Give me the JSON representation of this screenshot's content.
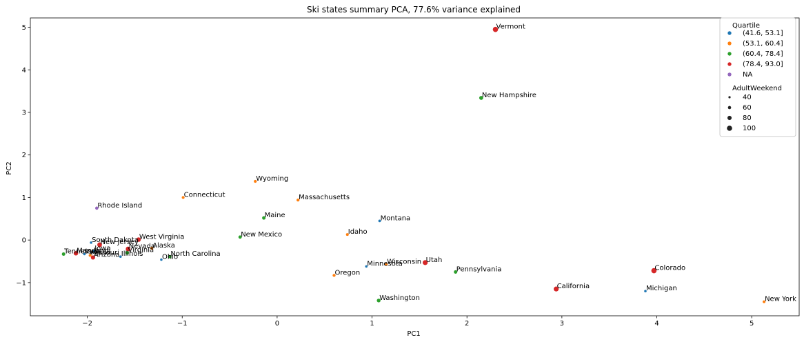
{
  "chart_data": {
    "type": "scatter",
    "title": "Ski states summary PCA, 77.6% variance explained",
    "xlabel": "PC1",
    "ylabel": "PC2",
    "xlim": [
      -2.6,
      5.5
    ],
    "ylim": [
      -1.78,
      5.22
    ],
    "xticks": [
      -2,
      -1,
      0,
      1,
      2,
      3,
      4,
      5
    ],
    "yticks": [
      -1,
      0,
      1,
      2,
      3,
      4,
      5
    ],
    "grid": false,
    "legend": {
      "placement": "top-right",
      "hue_title": "Quartile",
      "hue_entries": [
        {
          "label": "(41.6, 53.1]",
          "color": "#1f77b4"
        },
        {
          "label": "(53.1, 60.4]",
          "color": "#ff7f0e"
        },
        {
          "label": "(60.4, 78.4]",
          "color": "#2ca02c"
        },
        {
          "label": "(78.4, 93.0]",
          "color": "#d62728"
        },
        {
          "label": "NA",
          "color": "#9467bd"
        }
      ],
      "size_title": "AdultWeekend",
      "size_entries": [
        {
          "label": "40",
          "value": 40
        },
        {
          "label": "60",
          "value": 60
        },
        {
          "label": "80",
          "value": 80
        },
        {
          "label": "100",
          "value": 100
        }
      ]
    },
    "points": [
      {
        "label": "Vermont",
        "x": 2.3,
        "y": 4.95,
        "quartile": 3,
        "size": 100
      },
      {
        "label": "New Hampshire",
        "x": 2.15,
        "y": 3.34,
        "quartile": 2,
        "size": 75
      },
      {
        "label": "Wyoming",
        "x": -0.23,
        "y": 1.38,
        "quartile": 1,
        "size": 55
      },
      {
        "label": "Connecticut",
        "x": -0.99,
        "y": 1.0,
        "quartile": 1,
        "size": 52
      },
      {
        "label": "Massachusetts",
        "x": 0.22,
        "y": 0.94,
        "quartile": 1,
        "size": 55
      },
      {
        "label": "Rhode Island",
        "x": -1.9,
        "y": 0.75,
        "quartile": 4,
        "size": 60
      },
      {
        "label": "Maine",
        "x": -0.14,
        "y": 0.52,
        "quartile": 2,
        "size": 65
      },
      {
        "label": "Montana",
        "x": 1.08,
        "y": 0.45,
        "quartile": 0,
        "size": 48
      },
      {
        "label": "Idaho",
        "x": 0.74,
        "y": 0.13,
        "quartile": 1,
        "size": 52
      },
      {
        "label": "New Mexico",
        "x": -0.39,
        "y": 0.07,
        "quartile": 2,
        "size": 62
      },
      {
        "label": "West Virginia",
        "x": -1.46,
        "y": 0.01,
        "quartile": 3,
        "size": 85
      },
      {
        "label": "South Dakota",
        "x": -1.96,
        "y": -0.06,
        "quartile": 0,
        "size": 45
      },
      {
        "label": "New Jersey",
        "x": -1.87,
        "y": -0.11,
        "quartile": 3,
        "size": 90
      },
      {
        "label": "Alaska",
        "x": -1.32,
        "y": -0.19,
        "quartile": 1,
        "size": 55
      },
      {
        "label": "Nevada",
        "x": -1.57,
        "y": -0.21,
        "quartile": 3,
        "size": 90
      },
      {
        "label": "Iowa",
        "x": -1.93,
        "y": -0.26,
        "quartile": 0,
        "size": 45
      },
      {
        "label": "Virginia",
        "x": -1.58,
        "y": -0.3,
        "quartile": 2,
        "size": 70
      },
      {
        "label": "Tennessee",
        "x": -2.25,
        "y": -0.33,
        "quartile": 2,
        "size": 65
      },
      {
        "label": "Maryland",
        "x": -2.12,
        "y": -0.31,
        "quartile": 3,
        "size": 85
      },
      {
        "label": "Indiana",
        "x": -2.03,
        "y": -0.33,
        "quartile": 0,
        "size": 45
      },
      {
        "label": "Missouri",
        "x": -1.97,
        "y": -0.36,
        "quartile": 1,
        "size": 55
      },
      {
        "label": "Arizona",
        "x": -1.94,
        "y": -0.41,
        "quartile": 3,
        "size": 80
      },
      {
        "label": "Illinois",
        "x": -1.65,
        "y": -0.39,
        "quartile": 0,
        "size": 45
      },
      {
        "label": "North Carolina",
        "x": -1.13,
        "y": -0.39,
        "quartile": 2,
        "size": 65
      },
      {
        "label": "Ohio",
        "x": -1.22,
        "y": -0.46,
        "quartile": 0,
        "size": 45
      },
      {
        "label": "Wisconsin",
        "x": 1.15,
        "y": -0.57,
        "quartile": 1,
        "size": 55
      },
      {
        "label": "Utah",
        "x": 1.56,
        "y": -0.53,
        "quartile": 3,
        "size": 95
      },
      {
        "label": "Minnesota",
        "x": 0.94,
        "y": -0.62,
        "quartile": 0,
        "size": 45
      },
      {
        "label": "Colorado",
        "x": 3.97,
        "y": -0.72,
        "quartile": 3,
        "size": 100
      },
      {
        "label": "Pennsylvania",
        "x": 1.88,
        "y": -0.75,
        "quartile": 2,
        "size": 65
      },
      {
        "label": "Oregon",
        "x": 0.6,
        "y": -0.83,
        "quartile": 1,
        "size": 55
      },
      {
        "label": "California",
        "x": 2.94,
        "y": -1.15,
        "quartile": 3,
        "size": 95
      },
      {
        "label": "Michigan",
        "x": 3.88,
        "y": -1.2,
        "quartile": 0,
        "size": 45
      },
      {
        "label": "Washington",
        "x": 1.07,
        "y": -1.42,
        "quartile": 2,
        "size": 70
      },
      {
        "label": "New York",
        "x": 5.13,
        "y": -1.45,
        "quartile": 1,
        "size": 52
      }
    ]
  }
}
